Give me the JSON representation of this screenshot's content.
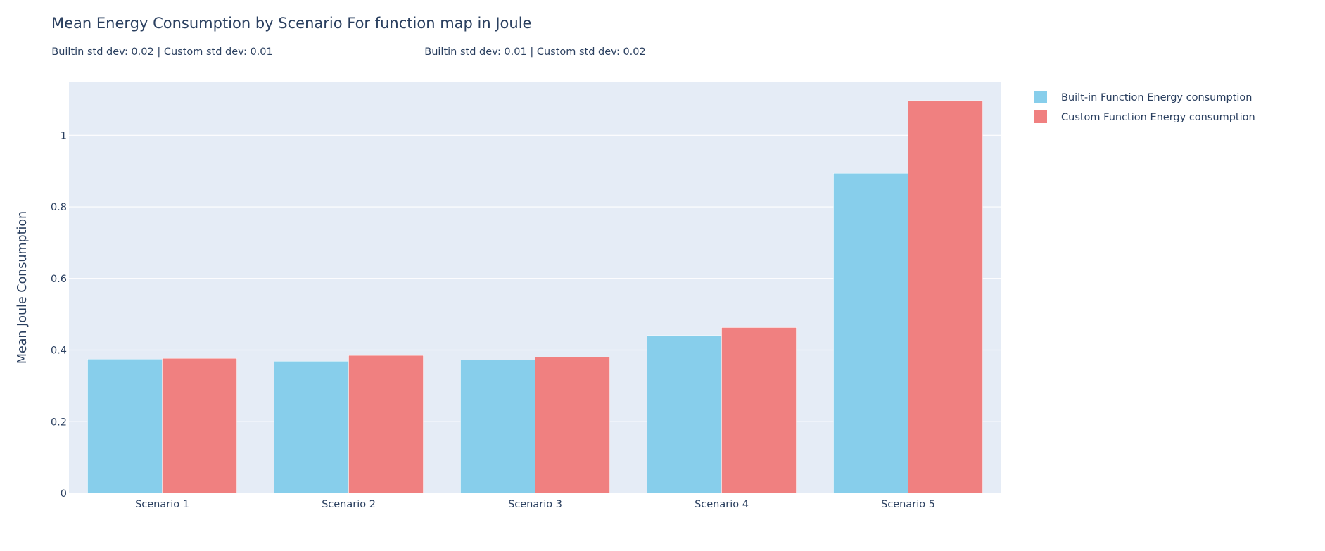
{
  "chart_data": {
    "type": "bar",
    "title": "Mean Energy Consumption by Scenario For function map in Joule",
    "xlabel": "",
    "ylabel": "Mean Joule Consumption",
    "ylim": [
      0,
      1.15
    ],
    "yticks": [
      0,
      0.2,
      0.4,
      0.6,
      0.8,
      1
    ],
    "ytick_labels": [
      "0",
      "0.2",
      "0.4",
      "0.6",
      "0.8",
      "1"
    ],
    "grid": true,
    "legend_position": "top-right, outside plot",
    "categories": [
      "Scenario 1",
      "Scenario 2",
      "Scenario 3",
      "Scenario 4",
      "Scenario 5"
    ],
    "series": [
      {
        "name": "Built-in Function Energy consumption",
        "color": "#87CEEB",
        "values": [
          0.375,
          0.369,
          0.373,
          0.441,
          0.894
        ]
      },
      {
        "name": "Custom Function Energy consumption",
        "color": "#F08080",
        "values": [
          0.377,
          0.385,
          0.381,
          0.463,
          1.097
        ]
      }
    ],
    "annotations": [
      {
        "text": "Builtin std dev: 0.02 | Custom std dev: 0.01",
        "category": "Scenario 1"
      },
      {
        "text": "Builtin std dev: 0.01 | Custom std dev: 0.02",
        "category": "Scenario 3"
      }
    ],
    "plot_background": "#E5ECF6",
    "font_color": "#2a3f5f"
  }
}
